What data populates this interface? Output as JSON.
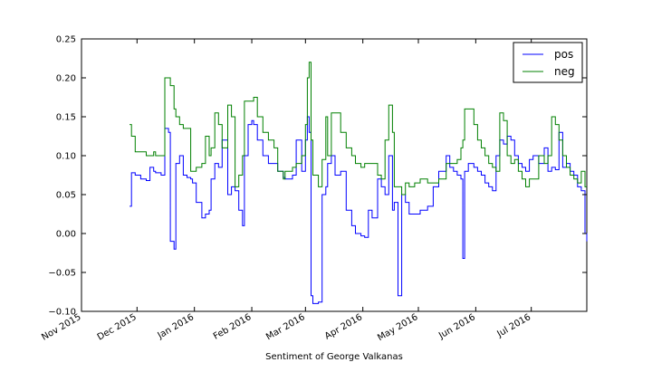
{
  "chart_data": {
    "type": "line",
    "title": "",
    "xlabel": "Sentiment of George Valkanas",
    "ylabel": "",
    "x_tick_labels": [
      "Nov 2015",
      "Dec 2015",
      "Jan 2016",
      "Feb 2016",
      "Mar 2016",
      "Apr 2016",
      "May 2016",
      "Jun 2016",
      "Jul 2016"
    ],
    "y_tick_labels": [
      "0.25",
      "0.20",
      "0.15",
      "0.10",
      "0.05",
      "0.00",
      "−0.05",
      "−0.10"
    ],
    "xlim": [
      "2015-11-01",
      "2016-07-31"
    ],
    "ylim": [
      -0.1,
      0.25
    ],
    "grid": false,
    "legend_position": "top-right",
    "series": [
      {
        "name": "pos",
        "color": "#0000ff",
        "x": [
          "2015-11-27",
          "2015-11-28",
          "2015-11-30",
          "2015-12-03",
          "2015-12-06",
          "2015-12-08",
          "2015-12-10",
          "2015-12-11",
          "2015-12-14",
          "2015-12-16",
          "2015-12-18",
          "2015-12-19",
          "2015-12-21",
          "2015-12-22",
          "2015-12-24",
          "2015-12-26",
          "2015-12-28",
          "2015-12-30",
          "2015-12-31",
          "2016-01-02",
          "2016-01-05",
          "2016-01-07",
          "2016-01-09",
          "2016-01-10",
          "2016-01-12",
          "2016-01-14",
          "2016-01-16",
          "2016-01-19",
          "2016-01-21",
          "2016-01-23",
          "2016-01-25",
          "2016-01-27",
          "2016-01-28",
          "2016-01-30",
          "2016-02-01",
          "2016-02-02",
          "2016-02-04",
          "2016-02-07",
          "2016-02-10",
          "2016-02-13",
          "2016-02-15",
          "2016-02-18",
          "2016-02-19",
          "2016-02-23",
          "2016-02-25",
          "2016-02-28",
          "2016-03-01",
          "2016-03-02",
          "2016-03-03",
          "2016-03-04",
          "2016-03-05",
          "2016-03-08",
          "2016-03-10",
          "2016-03-12",
          "2016-03-13",
          "2016-03-15",
          "2016-03-17",
          "2016-03-20",
          "2016-03-23",
          "2016-03-26",
          "2016-03-28",
          "2016-03-31",
          "2016-04-02",
          "2016-04-04",
          "2016-04-06",
          "2016-04-09",
          "2016-04-11",
          "2016-04-13",
          "2016-04-15",
          "2016-04-17",
          "2016-04-18",
          "2016-04-20",
          "2016-04-22",
          "2016-04-24",
          "2016-04-26",
          "2016-04-29",
          "2016-05-02",
          "2016-05-06",
          "2016-05-09",
          "2016-05-12",
          "2016-05-16",
          "2016-05-18",
          "2016-05-20",
          "2016-05-22",
          "2016-05-24",
          "2016-05-25",
          "2016-05-26",
          "2016-05-28",
          "2016-05-31",
          "2016-06-02",
          "2016-06-04",
          "2016-06-06",
          "2016-06-08",
          "2016-06-10",
          "2016-06-12",
          "2016-06-14",
          "2016-06-16",
          "2016-06-18",
          "2016-06-20",
          "2016-06-22",
          "2016-06-24",
          "2016-06-26",
          "2016-06-28",
          "2016-06-30",
          "2016-07-02",
          "2016-07-05",
          "2016-07-08",
          "2016-07-10",
          "2016-07-12",
          "2016-07-14",
          "2016-07-16",
          "2016-07-18",
          "2016-07-20",
          "2016-07-22",
          "2016-07-24",
          "2016-07-26",
          "2016-07-28",
          "2016-07-30",
          "2016-07-31"
        ],
        "values": [
          0.035,
          0.078,
          0.075,
          0.07,
          0.068,
          0.085,
          0.08,
          0.078,
          0.075,
          0.135,
          0.13,
          -0.01,
          -0.02,
          0.09,
          0.1,
          0.075,
          0.072,
          0.07,
          0.065,
          0.04,
          0.02,
          0.025,
          0.03,
          0.07,
          0.09,
          0.085,
          0.12,
          0.05,
          0.06,
          0.055,
          0.03,
          0.01,
          0.1,
          0.14,
          0.145,
          0.14,
          0.12,
          0.1,
          0.09,
          0.09,
          0.08,
          0.072,
          0.07,
          0.075,
          0.12,
          0.08,
          0.12,
          0.15,
          0.13,
          -0.08,
          -0.09,
          -0.088,
          0.05,
          0.06,
          0.09,
          0.1,
          0.075,
          0.08,
          0.03,
          0.01,
          0.0,
          -0.003,
          -0.005,
          0.03,
          0.02,
          0.07,
          0.06,
          0.05,
          0.1,
          0.03,
          0.04,
          -0.08,
          0.05,
          0.04,
          0.025,
          0.025,
          0.03,
          0.035,
          0.06,
          0.08,
          0.1,
          0.085,
          0.08,
          0.075,
          0.07,
          -0.032,
          0.08,
          0.09,
          0.085,
          0.08,
          0.075,
          0.065,
          0.06,
          0.055,
          0.1,
          0.12,
          0.115,
          0.125,
          0.12,
          0.1,
          0.09,
          0.085,
          0.08,
          0.095,
          0.1,
          0.09,
          0.11,
          0.08,
          0.085,
          0.082,
          0.13,
          0.085,
          0.09,
          0.08,
          0.075,
          0.06,
          0.055,
          0.0,
          -0.01
        ]
      },
      {
        "name": "neg",
        "color": "#008000",
        "x": [
          "2015-11-27",
          "2015-11-28",
          "2015-11-30",
          "2015-12-03",
          "2015-12-06",
          "2015-12-08",
          "2015-12-10",
          "2015-12-11",
          "2015-12-14",
          "2015-12-16",
          "2015-12-18",
          "2015-12-19",
          "2015-12-21",
          "2015-12-22",
          "2015-12-24",
          "2015-12-26",
          "2015-12-28",
          "2015-12-30",
          "2015-12-31",
          "2016-01-02",
          "2016-01-05",
          "2016-01-07",
          "2016-01-09",
          "2016-01-10",
          "2016-01-12",
          "2016-01-14",
          "2016-01-16",
          "2016-01-19",
          "2016-01-21",
          "2016-01-23",
          "2016-01-25",
          "2016-01-27",
          "2016-01-28",
          "2016-01-30",
          "2016-02-01",
          "2016-02-02",
          "2016-02-04",
          "2016-02-07",
          "2016-02-10",
          "2016-02-13",
          "2016-02-15",
          "2016-02-18",
          "2016-02-19",
          "2016-02-23",
          "2016-02-25",
          "2016-02-28",
          "2016-03-01",
          "2016-03-02",
          "2016-03-03",
          "2016-03-04",
          "2016-03-05",
          "2016-03-08",
          "2016-03-10",
          "2016-03-12",
          "2016-03-13",
          "2016-03-15",
          "2016-03-17",
          "2016-03-20",
          "2016-03-23",
          "2016-03-26",
          "2016-03-28",
          "2016-03-31",
          "2016-04-02",
          "2016-04-04",
          "2016-04-06",
          "2016-04-09",
          "2016-04-11",
          "2016-04-13",
          "2016-04-15",
          "2016-04-17",
          "2016-04-18",
          "2016-04-20",
          "2016-04-22",
          "2016-04-24",
          "2016-04-26",
          "2016-04-29",
          "2016-05-02",
          "2016-05-06",
          "2016-05-09",
          "2016-05-12",
          "2016-05-16",
          "2016-05-18",
          "2016-05-20",
          "2016-05-22",
          "2016-05-24",
          "2016-05-25",
          "2016-05-26",
          "2016-05-28",
          "2016-05-31",
          "2016-06-02",
          "2016-06-04",
          "2016-06-06",
          "2016-06-08",
          "2016-06-10",
          "2016-06-12",
          "2016-06-14",
          "2016-06-16",
          "2016-06-18",
          "2016-06-20",
          "2016-06-22",
          "2016-06-24",
          "2016-06-26",
          "2016-06-28",
          "2016-06-30",
          "2016-07-02",
          "2016-07-05",
          "2016-07-08",
          "2016-07-10",
          "2016-07-12",
          "2016-07-14",
          "2016-07-16",
          "2016-07-18",
          "2016-07-20",
          "2016-07-22",
          "2016-07-24",
          "2016-07-26",
          "2016-07-28",
          "2016-07-30",
          "2016-07-31"
        ],
        "values": [
          0.14,
          0.125,
          0.105,
          0.105,
          0.1,
          0.1,
          0.105,
          0.1,
          0.1,
          0.2,
          0.2,
          0.19,
          0.16,
          0.15,
          0.14,
          0.135,
          0.135,
          0.08,
          0.08,
          0.085,
          0.09,
          0.125,
          0.1,
          0.11,
          0.155,
          0.14,
          0.11,
          0.165,
          0.15,
          0.06,
          0.075,
          0.1,
          0.17,
          0.17,
          0.17,
          0.175,
          0.15,
          0.13,
          0.12,
          0.11,
          0.08,
          0.07,
          0.08,
          0.085,
          0.09,
          0.1,
          0.14,
          0.2,
          0.22,
          0.12,
          0.075,
          0.06,
          0.095,
          0.15,
          0.1,
          0.155,
          0.155,
          0.13,
          0.11,
          0.1,
          0.09,
          0.085,
          0.09,
          0.09,
          0.09,
          0.075,
          0.07,
          0.12,
          0.165,
          0.13,
          0.06,
          0.06,
          0.05,
          0.065,
          0.06,
          0.065,
          0.07,
          0.065,
          0.065,
          0.07,
          0.09,
          0.09,
          0.09,
          0.095,
          0.11,
          0.12,
          0.16,
          0.16,
          0.14,
          0.12,
          0.11,
          0.1,
          0.09,
          0.085,
          0.08,
          0.155,
          0.145,
          0.1,
          0.09,
          0.095,
          0.08,
          0.07,
          0.06,
          0.07,
          0.07,
          0.1,
          0.09,
          0.1,
          0.15,
          0.14,
          0.12,
          0.1,
          0.085,
          0.075,
          0.07,
          0.065,
          0.08,
          0.06,
          0.06
        ]
      }
    ]
  }
}
